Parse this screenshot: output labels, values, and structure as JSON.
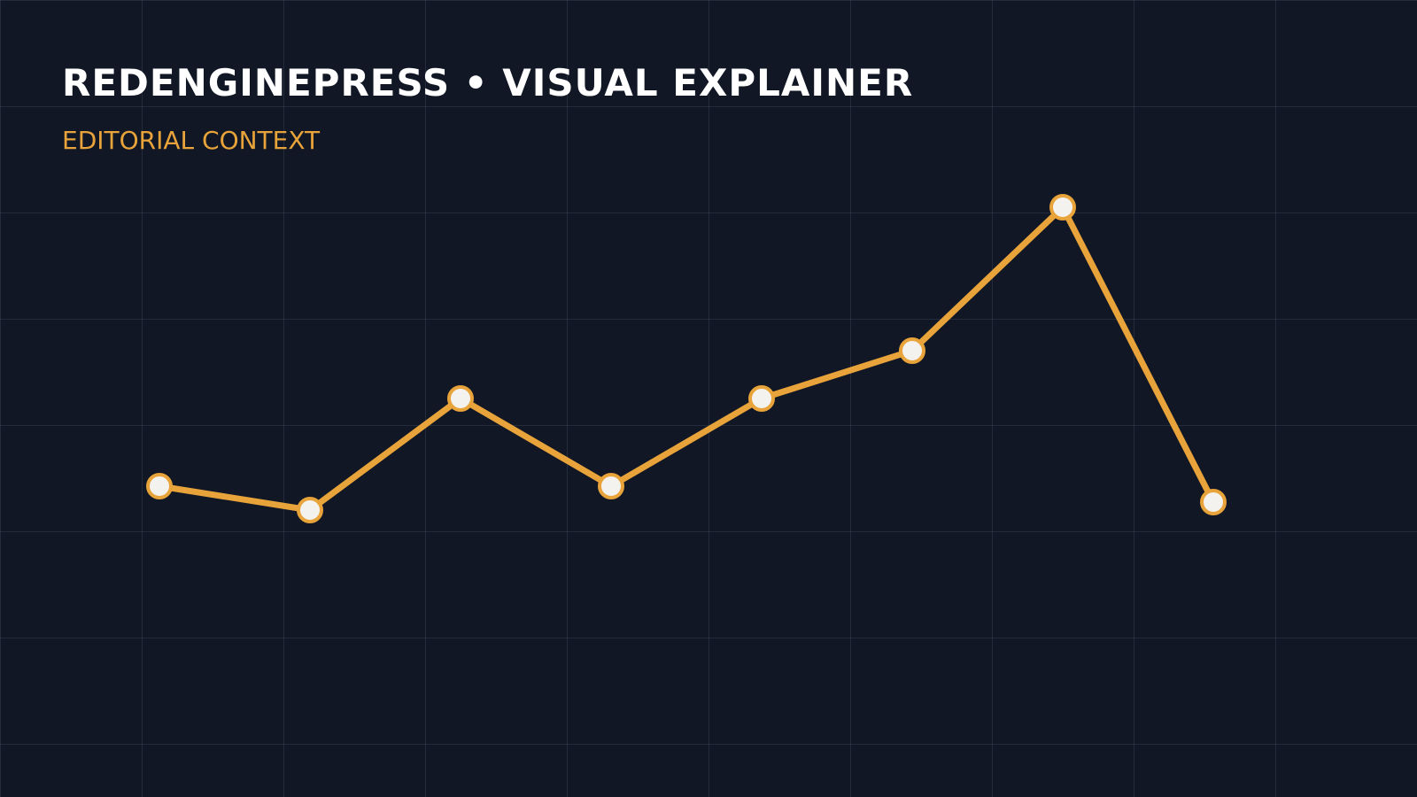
{
  "chart_data": {
    "type": "line",
    "title": "REDENGINEPRESS • VISUAL EXPLAINER",
    "subtitle": "EDITORIAL CONTEXT",
    "values": [
      39,
      36,
      50,
      39,
      50,
      56,
      74,
      37
    ],
    "color": "#e8a33a",
    "ylim": [
      0,
      100
    ]
  }
}
